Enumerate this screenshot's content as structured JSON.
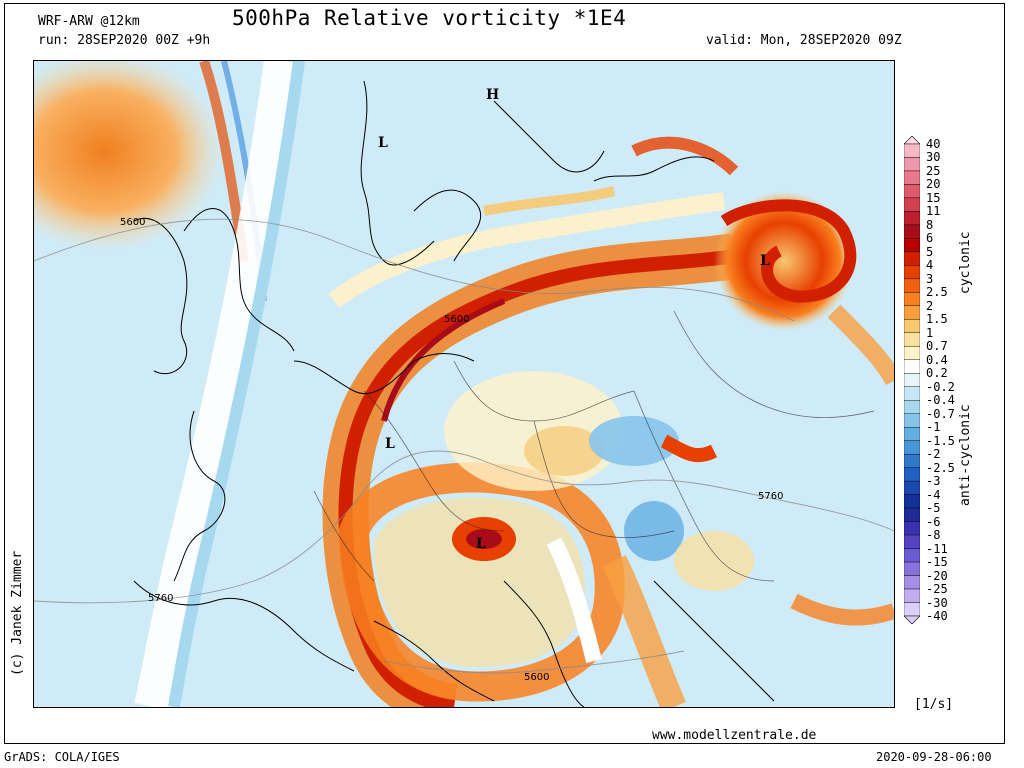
{
  "header": {
    "model": "WRF-ARW @12km",
    "run": "run: 28SEP2020 00Z +9h",
    "title": "500hPa Relative vorticity *1E4",
    "valid": "valid: Mon, 28SEP2020 09Z"
  },
  "footer": {
    "website": "www.modellzentrale.de",
    "grads": "GrADS: COLA/IGES",
    "timestamp": "2020-09-28-06:00"
  },
  "copyright": "(c) Janek Zimmer",
  "legend": {
    "unit": "[1/s]",
    "cyclonic_label": "cyclonic",
    "anticyclonic_label": "anti-cyclonic",
    "levels": [
      "40",
      "30",
      "25",
      "20",
      "15",
      "11",
      "8",
      "6",
      "5",
      "4",
      "3",
      "2.5",
      "2",
      "1.5",
      "1",
      "0.7",
      "0.4",
      "0.2",
      "-0.2",
      "-0.4",
      "-0.7",
      "-1",
      "-1.5",
      "-2",
      "-2.5",
      "-3",
      "-4",
      "-5",
      "-6",
      "-8",
      "-11",
      "-15",
      "-20",
      "-25",
      "-30",
      "-40"
    ],
    "colors": [
      "#fbe0e8",
      "#f4b8c6",
      "#ee98aa",
      "#e67a8c",
      "#de5a6c",
      "#d3404f",
      "#bd1e2e",
      "#a80c18",
      "#b80000",
      "#d02000",
      "#e84000",
      "#f06010",
      "#f88020",
      "#f8a040",
      "#f8c870",
      "#f8e0a0",
      "#fff2c8",
      "#ffffff",
      "#e6f4fb",
      "#c6e8f6",
      "#a6d8f0",
      "#86c4ea",
      "#64aee2",
      "#4896d8",
      "#3078cc",
      "#2060c0",
      "#1848b0",
      "#10309a",
      "#1e2a9a",
      "#3a32b0",
      "#5444c2",
      "#6c5ad2",
      "#8872dc",
      "#a48ee6",
      "#c0aef0",
      "#dacff8"
    ]
  },
  "map": {
    "pressure_labels": [
      {
        "name": "H",
        "kind": "high"
      },
      {
        "name": "L",
        "kind": "low-scandinavia"
      },
      {
        "name": "L",
        "kind": "low-baltic"
      },
      {
        "name": "L",
        "kind": "low-france"
      },
      {
        "name": "L",
        "kind": "low-adriatic"
      }
    ],
    "contour_labels": [
      "5600",
      "5600",
      "5760",
      "5760",
      "5600"
    ]
  }
}
